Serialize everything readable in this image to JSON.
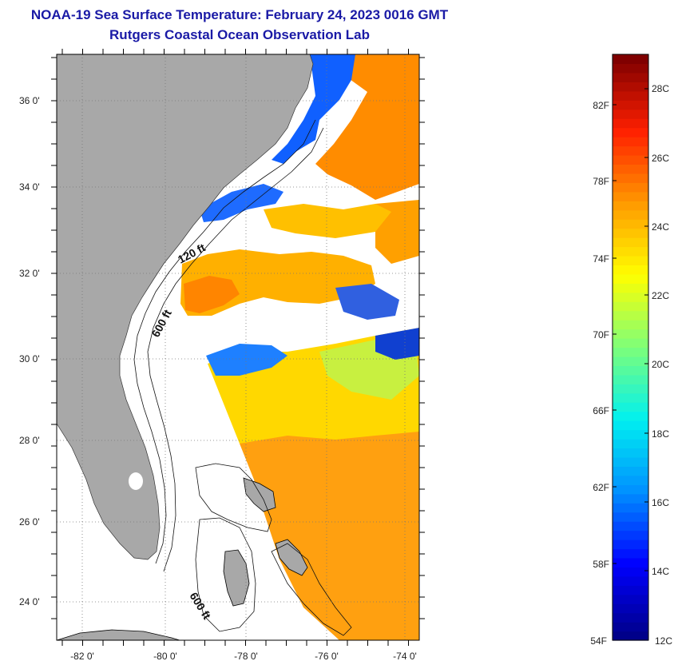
{
  "header": {
    "title": "NOAA-19 Sea Surface Temperature:  February 24, 2023 0016 GMT",
    "subtitle": "Rutgers Coastal Ocean Observation Lab"
  },
  "map": {
    "lat_labels": [
      "36 0'",
      "34 0'",
      "32 0'",
      "30 0'",
      "28 0'",
      "26 0'",
      "24 0'"
    ],
    "lon_labels": [
      "-82 0'",
      "-80 0'",
      "-78 0'",
      "-76 0'",
      "-74 0'"
    ],
    "contours": [
      "120 ft",
      "600 ft",
      "600 ft"
    ],
    "colors": {
      "land": "#a8a8a8",
      "cloud_or_nodata": "#ffffff",
      "grid": "#777777"
    }
  },
  "colorbar": {
    "fahrenheit_labels": [
      "82F",
      "78F",
      "74F",
      "70F",
      "66F",
      "62F",
      "58F",
      "54F"
    ],
    "celsius_labels": [
      "28C",
      "26C",
      "24C",
      "22C",
      "20C",
      "18C",
      "16C",
      "14C",
      "12C"
    ],
    "colors": [
      "#00008a",
      "#0000ff",
      "#0090ff",
      "#00f0f0",
      "#7dff7a",
      "#ffff00",
      "#ff9a00",
      "#ff2000",
      "#800000"
    ]
  }
}
